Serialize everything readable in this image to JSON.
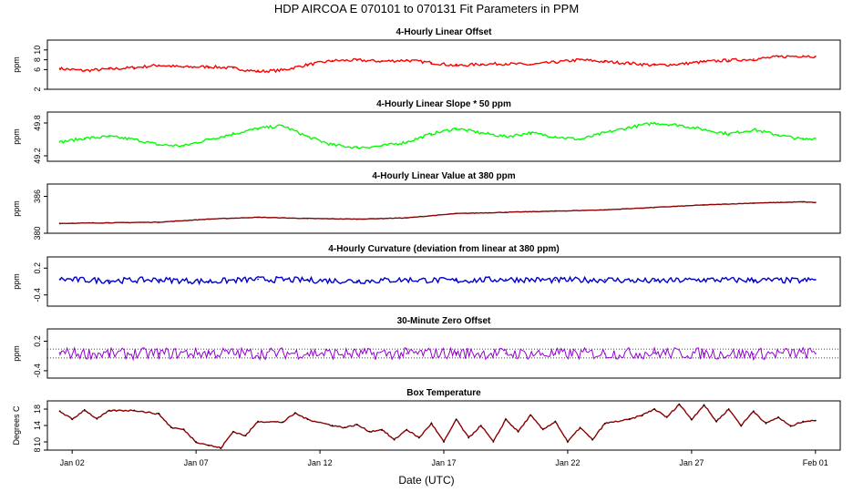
{
  "title": "HDP   AIRCOA E   070101 to 070131   Fit Parameters in PPM",
  "xlabel": "Date (UTC)",
  "x_ticks": [
    "Jan 02",
    "Jan 07",
    "Jan 12",
    "Jan 17",
    "Jan 22",
    "Jan 27",
    "Feb 01"
  ],
  "chart_data": [
    {
      "type": "line",
      "title": "4-Hourly Linear Offset",
      "ylabel": "ppm",
      "color": "#ff0000",
      "ylim": [
        2,
        12
      ],
      "y_ticks": [
        2,
        6,
        8,
        10
      ],
      "xlim": [
        "2007-01-01T00:00",
        "2007-02-02T00:00"
      ],
      "points": [
        [
          "2007-01-01T12:00",
          6.2
        ],
        [
          "2007-01-02T12:00",
          5.8
        ],
        [
          "2007-01-03T12:00",
          6.1
        ],
        [
          "2007-01-04T12:00",
          6.4
        ],
        [
          "2007-01-05T12:00",
          6.9
        ],
        [
          "2007-01-06T12:00",
          6.5
        ],
        [
          "2007-01-07T12:00",
          6.6
        ],
        [
          "2007-01-08T12:00",
          6.3
        ],
        [
          "2007-01-09T12:00",
          5.6
        ],
        [
          "2007-01-10T12:00",
          5.9
        ],
        [
          "2007-01-11T12:00",
          7.0
        ],
        [
          "2007-01-12T12:00",
          7.8
        ],
        [
          "2007-01-13T12:00",
          7.9
        ],
        [
          "2007-01-14T12:00",
          7.7
        ],
        [
          "2007-01-15T12:00",
          7.9
        ],
        [
          "2007-01-16T12:00",
          7.4
        ],
        [
          "2007-01-17T12:00",
          6.8
        ],
        [
          "2007-01-18T12:00",
          7.1
        ],
        [
          "2007-01-19T12:00",
          7.2
        ],
        [
          "2007-01-20T12:00",
          7.0
        ],
        [
          "2007-01-21T12:00",
          7.5
        ],
        [
          "2007-01-22T12:00",
          8.0
        ],
        [
          "2007-01-23T12:00",
          7.6
        ],
        [
          "2007-01-24T12:00",
          7.3
        ],
        [
          "2007-01-25T12:00",
          6.9
        ],
        [
          "2007-01-26T12:00",
          7.1
        ],
        [
          "2007-01-27T12:00",
          7.6
        ],
        [
          "2007-01-28T12:00",
          7.9
        ],
        [
          "2007-01-29T12:00",
          8.1
        ],
        [
          "2007-01-30T12:00",
          8.6
        ],
        [
          "2007-01-31T12:00",
          8.8
        ],
        [
          "2007-02-01T00:00",
          8.7
        ]
      ]
    },
    {
      "type": "line",
      "title": "4-Hourly Linear Slope * 50 ppm",
      "ylabel": "ppm",
      "color": "#00ff00",
      "ylim": [
        49.1,
        50.0
      ],
      "y_ticks": [
        49.2,
        49.8
      ],
      "xlim": [
        "2007-01-01T00:00",
        "2007-02-02T00:00"
      ],
      "points": [
        [
          "2007-01-01T12:00",
          49.45
        ],
        [
          "2007-01-02T12:00",
          49.52
        ],
        [
          "2007-01-03T12:00",
          49.55
        ],
        [
          "2007-01-04T12:00",
          49.5
        ],
        [
          "2007-01-05T12:00",
          49.4
        ],
        [
          "2007-01-06T12:00",
          49.38
        ],
        [
          "2007-01-07T12:00",
          49.5
        ],
        [
          "2007-01-08T12:00",
          49.6
        ],
        [
          "2007-01-09T12:00",
          49.7
        ],
        [
          "2007-01-10T12:00",
          49.75
        ],
        [
          "2007-01-11T12:00",
          49.55
        ],
        [
          "2007-01-12T12:00",
          49.4
        ],
        [
          "2007-01-13T12:00",
          49.35
        ],
        [
          "2007-01-14T12:00",
          49.38
        ],
        [
          "2007-01-15T12:00",
          49.45
        ],
        [
          "2007-01-16T12:00",
          49.6
        ],
        [
          "2007-01-17T12:00",
          49.7
        ],
        [
          "2007-01-18T12:00",
          49.62
        ],
        [
          "2007-01-19T12:00",
          49.55
        ],
        [
          "2007-01-20T12:00",
          49.62
        ],
        [
          "2007-01-21T12:00",
          49.55
        ],
        [
          "2007-01-22T12:00",
          49.5
        ],
        [
          "2007-01-23T12:00",
          49.62
        ],
        [
          "2007-01-24T12:00",
          49.72
        ],
        [
          "2007-01-25T12:00",
          49.8
        ],
        [
          "2007-01-26T12:00",
          49.76
        ],
        [
          "2007-01-27T12:00",
          49.68
        ],
        [
          "2007-01-28T12:00",
          49.6
        ],
        [
          "2007-01-29T12:00",
          49.68
        ],
        [
          "2007-01-30T12:00",
          49.58
        ],
        [
          "2007-01-31T12:00",
          49.5
        ],
        [
          "2007-02-01T00:00",
          49.52
        ]
      ]
    },
    {
      "type": "line",
      "title": "4-Hourly Linear Value at 380 ppm",
      "ylabel": "ppm",
      "color": "#8b0000",
      "ylim": [
        380,
        388
      ],
      "y_ticks": [
        380,
        386
      ],
      "xlim": [
        "2007-01-01T00:00",
        "2007-02-02T00:00"
      ],
      "points": [
        [
          "2007-01-01T12:00",
          381.6
        ],
        [
          "2007-01-03T12:00",
          381.7
        ],
        [
          "2007-01-05T12:00",
          381.8
        ],
        [
          "2007-01-07T12:00",
          382.3
        ],
        [
          "2007-01-09T12:00",
          382.6
        ],
        [
          "2007-01-11T12:00",
          382.4
        ],
        [
          "2007-01-13T12:00",
          382.3
        ],
        [
          "2007-01-15T12:00",
          382.5
        ],
        [
          "2007-01-17T12:00",
          383.2
        ],
        [
          "2007-01-19T12:00",
          383.4
        ],
        [
          "2007-01-21T12:00",
          383.6
        ],
        [
          "2007-01-23T12:00",
          383.8
        ],
        [
          "2007-01-25T12:00",
          384.2
        ],
        [
          "2007-01-27T12:00",
          384.6
        ],
        [
          "2007-01-29T12:00",
          384.9
        ],
        [
          "2007-01-31T12:00",
          385.1
        ],
        [
          "2007-02-01T00:00",
          385.0
        ]
      ]
    },
    {
      "type": "line",
      "title": "4-Hourly Curvature (deviation from linear at 380 ppm)",
      "ylabel": "ppm",
      "color": "#0000cd",
      "ylim": [
        -0.65,
        0.45
      ],
      "y_ticks": [
        -0.4,
        0.2
      ],
      "xlim": [
        "2007-01-01T00:00",
        "2007-02-02T00:00"
      ],
      "points": [
        [
          "2007-01-01T12:00",
          -0.05
        ],
        [
          "2007-01-03T12:00",
          -0.08
        ],
        [
          "2007-01-05T12:00",
          -0.06
        ],
        [
          "2007-01-07T12:00",
          -0.1
        ],
        [
          "2007-01-09T12:00",
          -0.05
        ],
        [
          "2007-01-11T12:00",
          -0.07
        ],
        [
          "2007-01-13T12:00",
          -0.09
        ],
        [
          "2007-01-15T12:00",
          -0.06
        ],
        [
          "2007-01-17T12:00",
          -0.08
        ],
        [
          "2007-01-19T12:00",
          -0.05
        ],
        [
          "2007-01-21T12:00",
          -0.07
        ],
        [
          "2007-01-23T12:00",
          -0.06
        ],
        [
          "2007-01-25T12:00",
          -0.09
        ],
        [
          "2007-01-27T12:00",
          -0.06
        ],
        [
          "2007-01-29T12:00",
          -0.07
        ],
        [
          "2007-01-31T12:00",
          -0.08
        ],
        [
          "2007-02-01T00:00",
          -0.06
        ]
      ]
    },
    {
      "type": "line",
      "title": "30-Minute Zero Offset",
      "ylabel": "ppm",
      "color": "#9400d3",
      "ylim": [
        -0.55,
        0.45
      ],
      "y_ticks": [
        -0.4,
        0.2
      ],
      "reference_lines": [
        0.04,
        -0.14
      ],
      "xlim": [
        "2007-01-01T00:00",
        "2007-02-02T00:00"
      ],
      "points": [
        [
          "2007-01-01T12:00",
          -0.04
        ],
        [
          "2007-01-03T12:00",
          -0.06
        ],
        [
          "2007-01-05T12:00",
          -0.05
        ],
        [
          "2007-01-07T12:00",
          -0.04
        ],
        [
          "2007-01-09T12:00",
          -0.05
        ],
        [
          "2007-01-11T12:00",
          -0.04
        ],
        [
          "2007-01-13T12:00",
          -0.06
        ],
        [
          "2007-01-15T12:00",
          -0.05
        ],
        [
          "2007-01-17T12:00",
          -0.04
        ],
        [
          "2007-01-19T12:00",
          -0.05
        ],
        [
          "2007-01-21T12:00",
          -0.06
        ],
        [
          "2007-01-23T12:00",
          -0.05
        ],
        [
          "2007-01-25T12:00",
          -0.04
        ],
        [
          "2007-01-27T12:00",
          -0.05
        ],
        [
          "2007-01-29T12:00",
          -0.06
        ],
        [
          "2007-01-31T12:00",
          -0.04
        ],
        [
          "2007-02-01T00:00",
          -0.05
        ]
      ]
    },
    {
      "type": "line",
      "title": "Box Temperature",
      "ylabel": "Degrees C",
      "color": "#8b0000",
      "ylim": [
        8,
        20
      ],
      "y_ticks": [
        8,
        10,
        14,
        18
      ],
      "xlim": [
        "2007-01-01T00:00",
        "2007-02-02T00:00"
      ],
      "points": [
        [
          "2007-01-01T12:00",
          17.5
        ],
        [
          "2007-01-02T00:00",
          15.5
        ],
        [
          "2007-01-02T12:00",
          17.8
        ],
        [
          "2007-01-03T00:00",
          15.6
        ],
        [
          "2007-01-03T12:00",
          17.6
        ],
        [
          "2007-01-04T12:00",
          17.7
        ],
        [
          "2007-01-05T12:00",
          16.8
        ],
        [
          "2007-01-06T00:00",
          13.5
        ],
        [
          "2007-01-06T12:00",
          13.0
        ],
        [
          "2007-01-07T00:00",
          10.0
        ],
        [
          "2007-01-07T12:00",
          9.2
        ],
        [
          "2007-01-08T00:00",
          8.5
        ],
        [
          "2007-01-08T12:00",
          12.5
        ],
        [
          "2007-01-09T00:00",
          11.5
        ],
        [
          "2007-01-09T12:00",
          15.0
        ],
        [
          "2007-01-10T12:00",
          14.8
        ],
        [
          "2007-01-11T00:00",
          17.0
        ],
        [
          "2007-01-11T12:00",
          15.5
        ],
        [
          "2007-01-12T12:00",
          14.0
        ],
        [
          "2007-01-13T00:00",
          13.5
        ],
        [
          "2007-01-13T12:00",
          14.2
        ],
        [
          "2007-01-14T00:00",
          12.5
        ],
        [
          "2007-01-14T12:00",
          13.0
        ],
        [
          "2007-01-15T00:00",
          10.5
        ],
        [
          "2007-01-15T12:00",
          13.0
        ],
        [
          "2007-01-16T00:00",
          11.0
        ],
        [
          "2007-01-16T12:00",
          14.5
        ],
        [
          "2007-01-17T00:00",
          10.0
        ],
        [
          "2007-01-17T12:00",
          15.5
        ],
        [
          "2007-01-18T00:00",
          11.0
        ],
        [
          "2007-01-18T12:00",
          14.0
        ],
        [
          "2007-01-19T00:00",
          10.0
        ],
        [
          "2007-01-19T12:00",
          15.5
        ],
        [
          "2007-01-20T00:00",
          12.5
        ],
        [
          "2007-01-20T12:00",
          16.5
        ],
        [
          "2007-01-21T00:00",
          13.0
        ],
        [
          "2007-01-21T12:00",
          15.0
        ],
        [
          "2007-01-22T00:00",
          10.0
        ],
        [
          "2007-01-22T12:00",
          13.5
        ],
        [
          "2007-01-23T00:00",
          10.5
        ],
        [
          "2007-01-23T12:00",
          14.5
        ],
        [
          "2007-01-24T12:00",
          15.5
        ],
        [
          "2007-01-25T00:00",
          16.5
        ],
        [
          "2007-01-25T12:00",
          18.0
        ],
        [
          "2007-01-26T00:00",
          16.0
        ],
        [
          "2007-01-26T12:00",
          19.2
        ],
        [
          "2007-01-27T00:00",
          15.5
        ],
        [
          "2007-01-27T12:00",
          19.0
        ],
        [
          "2007-01-28T00:00",
          15.0
        ],
        [
          "2007-01-28T12:00",
          18.0
        ],
        [
          "2007-01-29T00:00",
          14.0
        ],
        [
          "2007-01-29T12:00",
          17.5
        ],
        [
          "2007-01-30T00:00",
          14.5
        ],
        [
          "2007-01-30T12:00",
          16.0
        ],
        [
          "2007-01-31T00:00",
          13.8
        ],
        [
          "2007-01-31T12:00",
          15.0
        ],
        [
          "2007-02-01T00:00",
          15.2
        ]
      ]
    }
  ]
}
